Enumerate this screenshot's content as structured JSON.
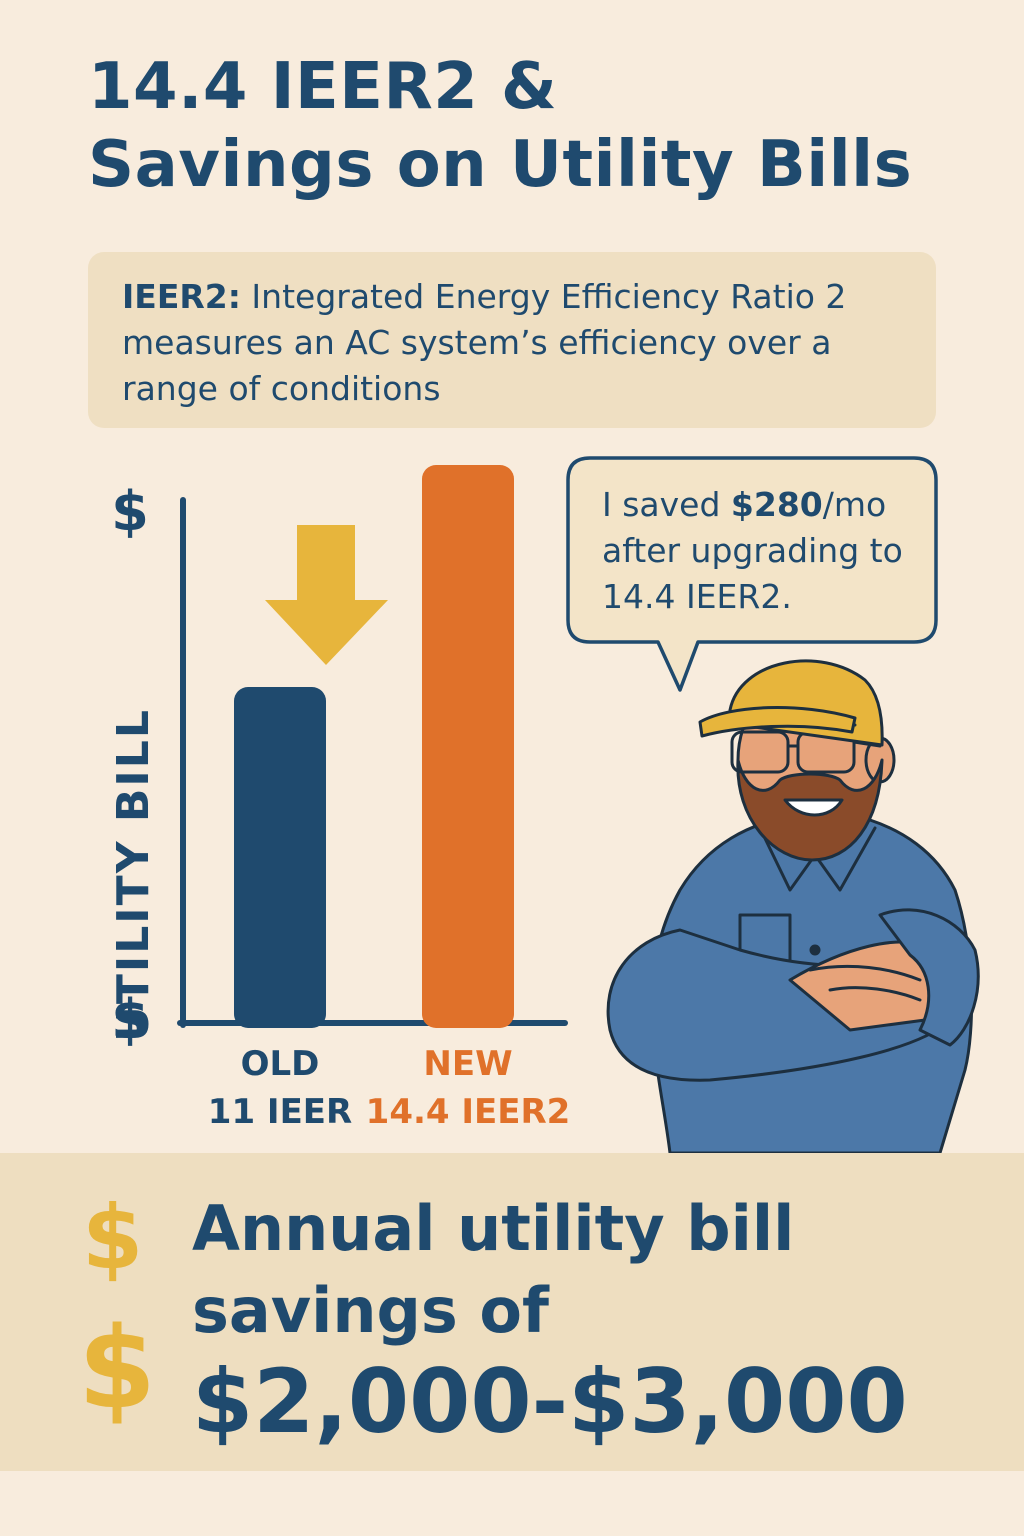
{
  "title": {
    "line1": "14.4 IEER2 &",
    "line2": "Savings on Utility Bills"
  },
  "definition": {
    "term": "IEER2:",
    "text": " Integrated Energy Efficiency Ratio 2 measures an AC system’s efficiency over a range of conditions"
  },
  "chart_data": {
    "type": "bar",
    "ylabel": "UTILITY BILL",
    "y_tick_labels": [
      "$",
      "$"
    ],
    "categories": [
      {
        "line1": "OLD",
        "line2": "11 IEER",
        "color": "#1f4a6e"
      },
      {
        "line1": "NEW",
        "line2": "14.4 IEER2",
        "color": "#e0712a"
      }
    ],
    "values": [
      0.6,
      1.0
    ],
    "ylim": [
      0,
      1
    ],
    "arrow_color": "#e7b53c",
    "grid": false
  },
  "speech": {
    "pre": "I saved ",
    "amount": "$280",
    "post": "/mo after upgrading to 14.4 IEER2."
  },
  "savings": {
    "line1": "Annual utility bill",
    "line2": "savings of",
    "amount": "$2,000-$3,000",
    "dollar_symbol_1": "$",
    "dollar_symbol_2": "$"
  },
  "colors": {
    "background": "#f8ecdd",
    "panel": "#efdfc2",
    "navy": "#1f4a6e",
    "orange": "#e0712a",
    "gold": "#e7b53c"
  }
}
